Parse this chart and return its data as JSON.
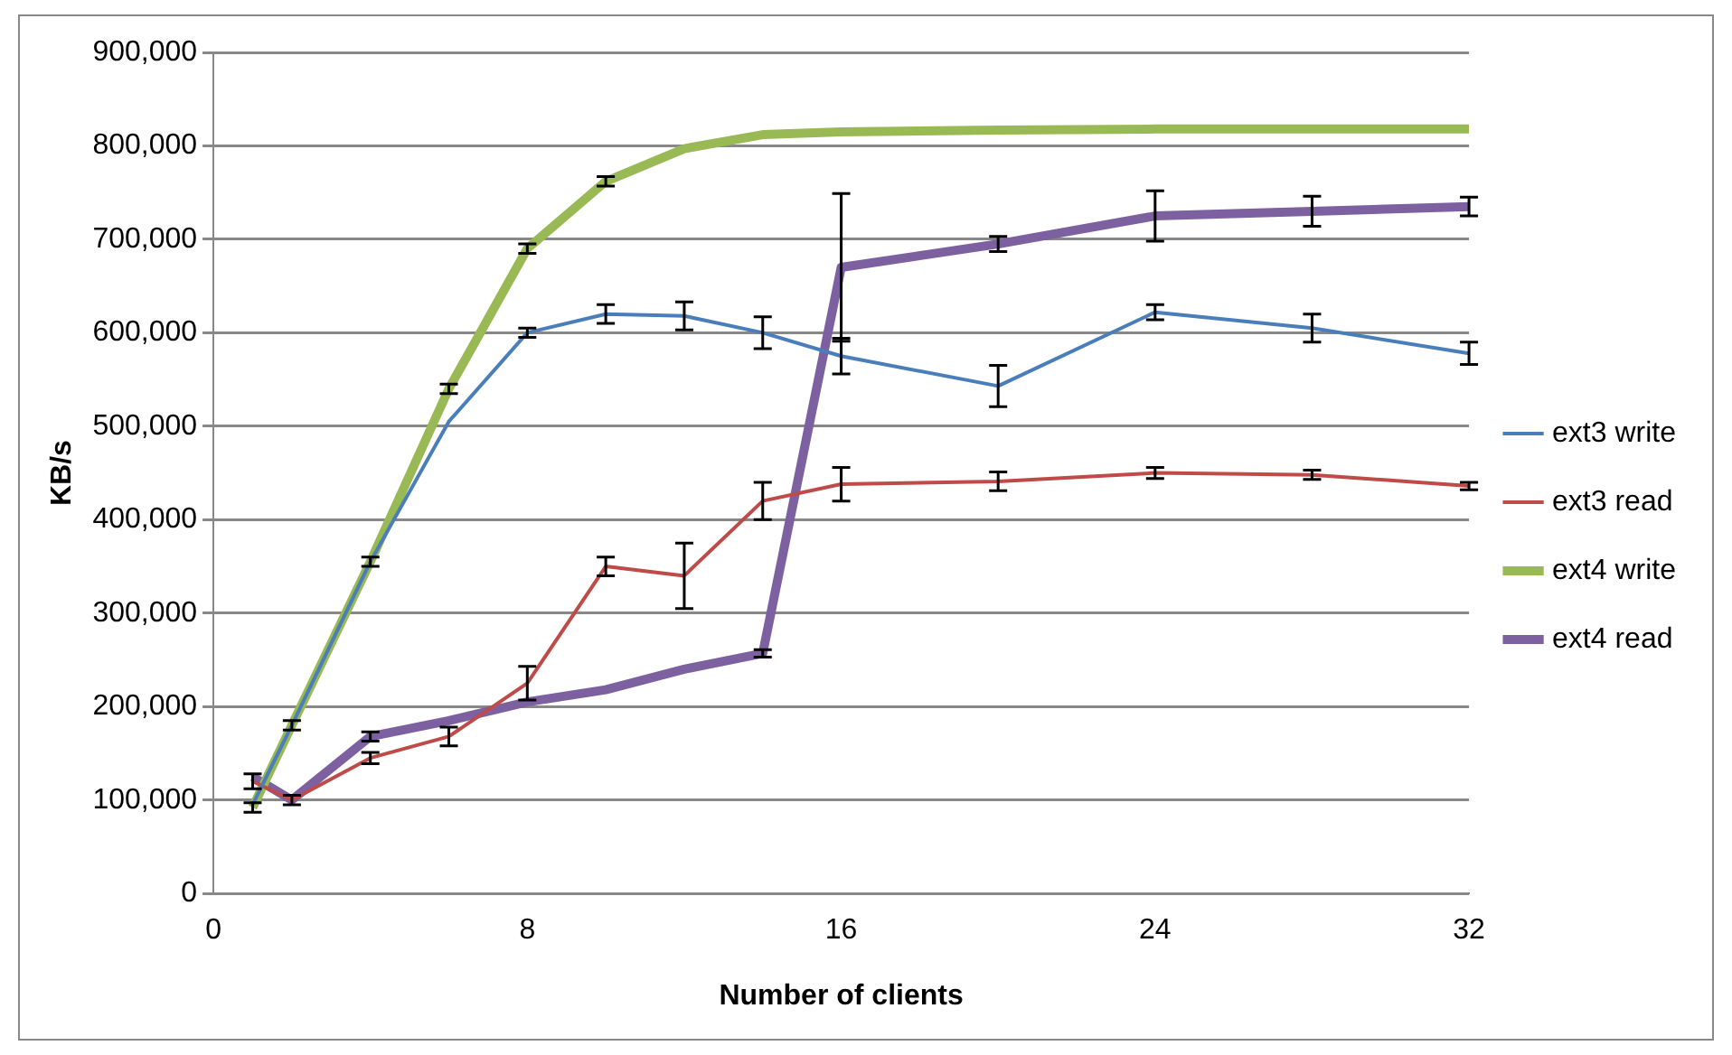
{
  "chart_data": {
    "type": "line",
    "xlabel": "Number of clients",
    "ylabel": "KB/s",
    "x": [
      1,
      2,
      4,
      6,
      8,
      10,
      12,
      14,
      16,
      20,
      24,
      28,
      32
    ],
    "xlim": [
      0,
      32
    ],
    "xticks": [
      0,
      8,
      16,
      24,
      32
    ],
    "ylim": [
      0,
      900000
    ],
    "yticks": [
      {
        "value": 0,
        "label": "0"
      },
      {
        "value": 100000,
        "label": "100,000"
      },
      {
        "value": 200000,
        "label": "200,000"
      },
      {
        "value": 300000,
        "label": "300,000"
      },
      {
        "value": 400000,
        "label": "400,000"
      },
      {
        "value": 500000,
        "label": "500,000"
      },
      {
        "value": 600000,
        "label": "600,000"
      },
      {
        "value": 700000,
        "label": "700,000"
      },
      {
        "value": 800000,
        "label": "800,000"
      },
      {
        "value": 900000,
        "label": "900,000"
      }
    ],
    "grid": "y",
    "legend": "right",
    "marker": "none",
    "series": [
      {
        "name": "ext3 write",
        "color": "#4a7ebb",
        "values": [
          95000,
          180000,
          355000,
          505000,
          600000,
          620000,
          618000,
          600000,
          575000,
          543000,
          622000,
          605000,
          578000
        ],
        "errors": [
          null,
          null,
          null,
          null,
          5000,
          10000,
          15000,
          17000,
          19000,
          22000,
          8000,
          15000,
          12000
        ]
      },
      {
        "name": "ext3 read",
        "color": "#be4b48",
        "values": [
          120000,
          100000,
          145000,
          168000,
          225000,
          350000,
          340000,
          420000,
          438000,
          441000,
          450000,
          448000,
          436000
        ],
        "errors": [
          8000,
          5000,
          6000,
          10000,
          18000,
          10000,
          35000,
          20000,
          18000,
          10000,
          6000,
          5000,
          4000
        ]
      },
      {
        "name": "ext4 write",
        "color": "#98b954",
        "values": [
          92000,
          180000,
          355000,
          540000,
          690000,
          762000,
          797000,
          812000,
          815000,
          817000,
          818000,
          818000,
          818000
        ],
        "errors": [
          5000,
          5000,
          5000,
          5000,
          5000,
          5000,
          null,
          null,
          null,
          null,
          null,
          null,
          null
        ]
      },
      {
        "name": "ext4 read",
        "color": "#7d60a0",
        "values": [
          125000,
          100000,
          168000,
          185000,
          205000,
          218000,
          240000,
          257000,
          670000,
          695000,
          725000,
          730000,
          735000
        ],
        "errors": [
          null,
          null,
          5000,
          null,
          null,
          null,
          null,
          4000,
          79000,
          8000,
          27000,
          16000,
          10000
        ]
      }
    ]
  }
}
